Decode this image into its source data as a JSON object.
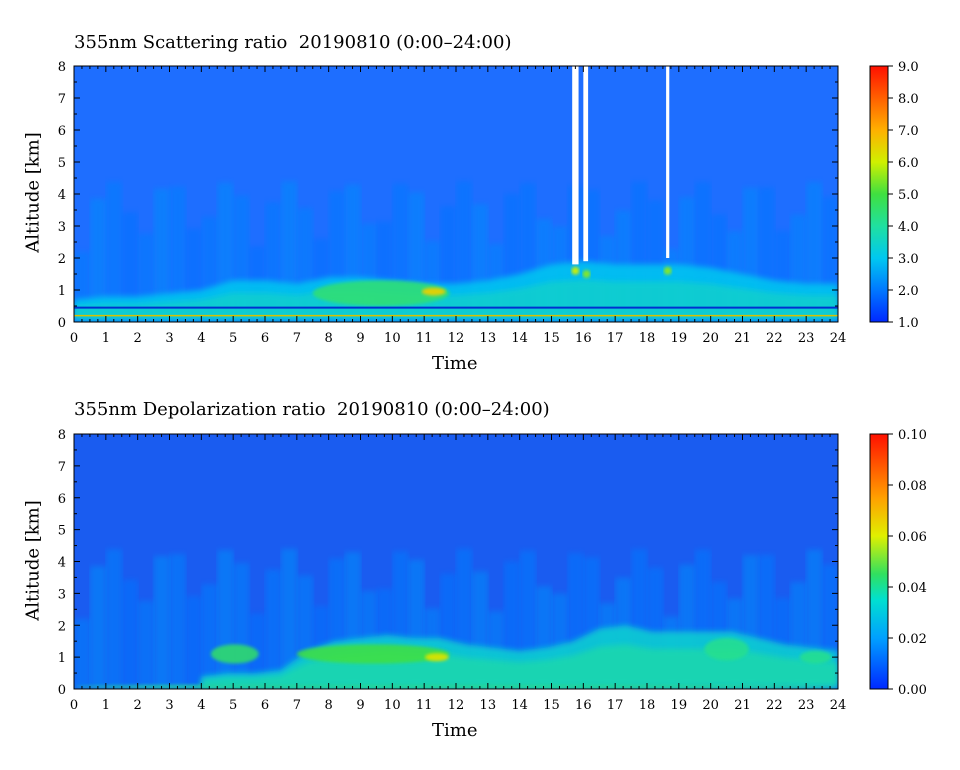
{
  "chart_data": [
    {
      "type": "heatmap",
      "title": "355nm Scattering ratio  20190810 (0:00–24:00)",
      "xlabel": "Time",
      "ylabel": "Altitude [km]",
      "xlim": [
        0,
        24
      ],
      "ylim": [
        0,
        8
      ],
      "x_ticks": [
        "0",
        "1",
        "2",
        "3",
        "4",
        "5",
        "6",
        "7",
        "8",
        "9",
        "10",
        "11",
        "12",
        "13",
        "14",
        "15",
        "16",
        "17",
        "18",
        "19",
        "20",
        "21",
        "22",
        "23",
        "24"
      ],
      "y_ticks": [
        "0",
        "1",
        "2",
        "3",
        "4",
        "5",
        "6",
        "7",
        "8"
      ],
      "colorbar": {
        "range": [
          1.0,
          9.0
        ],
        "ticks": [
          "1.0",
          "2.0",
          "3.0",
          "4.0",
          "5.0",
          "6.0",
          "7.0",
          "8.0",
          "9.0"
        ],
        "colormap": "jet"
      },
      "background_value": 1.6,
      "features": [
        {
          "kind": "aerosol_layer",
          "x_range": [
            0,
            24
          ],
          "top_km": [
            0.7,
            0.8,
            0.8,
            0.9,
            1.0,
            1.3,
            1.3,
            1.2,
            1.4,
            1.4,
            1.3,
            1.2,
            1.2,
            1.3,
            1.5,
            1.8,
            1.9,
            1.8,
            1.8,
            1.8,
            1.7,
            1.5,
            1.3,
            1.2,
            1.2
          ],
          "value": 3.0
        },
        {
          "kind": "enhanced_layer",
          "x_range": [
            7.5,
            11.8
          ],
          "alt_range": [
            0.5,
            1.3
          ],
          "value": 4.5
        },
        {
          "kind": "peak",
          "x": 11.3,
          "alt": 0.95,
          "value": 6.5
        },
        {
          "kind": "cloud_gap",
          "x_range": [
            15.65,
            15.85
          ],
          "alt_range": [
            1.8,
            8.0
          ],
          "value": null
        },
        {
          "kind": "cloud_gap",
          "x_range": [
            16.0,
            16.15
          ],
          "alt_range": [
            1.9,
            8.0
          ],
          "value": null
        },
        {
          "kind": "cloud_gap",
          "x_range": [
            18.6,
            18.7
          ],
          "alt_range": [
            2.0,
            8.0
          ],
          "value": null
        },
        {
          "kind": "cloud_base",
          "x": 15.75,
          "alt": 1.6,
          "value": 6.0
        },
        {
          "kind": "cloud_base",
          "x": 16.1,
          "alt": 1.5,
          "value": 5.5
        },
        {
          "kind": "cloud_base",
          "x": 18.65,
          "alt": 1.6,
          "value": 5.5
        }
      ],
      "colors": {
        "background": "#1e6eff",
        "near_surface_line": "#d8c000"
      }
    },
    {
      "type": "heatmap",
      "title": "355nm Depolarization ratio  20190810 (0:00–24:00)",
      "xlabel": "Time",
      "ylabel": "Altitude [km]",
      "xlim": [
        0,
        24
      ],
      "ylim": [
        0,
        8
      ],
      "x_ticks": [
        "0",
        "1",
        "2",
        "3",
        "4",
        "5",
        "6",
        "7",
        "8",
        "9",
        "10",
        "11",
        "12",
        "13",
        "14",
        "15",
        "16",
        "17",
        "18",
        "19",
        "20",
        "21",
        "22",
        "23",
        "24"
      ],
      "y_ticks": [
        "0",
        "1",
        "2",
        "3",
        "4",
        "5",
        "6",
        "7",
        "8"
      ],
      "colorbar": {
        "range": [
          0.0,
          0.1
        ],
        "ticks": [
          "0.00",
          "0.02",
          "0.04",
          "0.06",
          "0.08",
          "0.10"
        ],
        "colormap": "jet"
      },
      "background_value": 0.008,
      "features": [
        {
          "kind": "aerosol_layer",
          "x_range": [
            4,
            24
          ],
          "top_km": [
            0.4,
            0.5,
            0.5,
            0.6,
            1.2,
            1.5,
            1.6,
            1.7,
            1.6,
            1.6,
            1.4,
            1.3,
            1.2,
            1.3,
            1.5,
            1.9,
            2.0,
            1.8,
            1.8,
            1.8,
            1.8,
            1.6,
            1.4,
            1.3,
            1.2
          ],
          "value": 0.03
        },
        {
          "kind": "enhanced_layer",
          "x_range": [
            7,
            11.8
          ],
          "alt_range": [
            0.8,
            1.4
          ],
          "value": 0.05
        },
        {
          "kind": "peak",
          "x": 11.4,
          "alt": 1.0,
          "value": 0.065
        },
        {
          "kind": "enhanced_layer",
          "x_range": [
            4.3,
            5.8
          ],
          "alt_range": [
            0.8,
            1.4
          ],
          "value": 0.045
        },
        {
          "kind": "enhanced_layer",
          "x_range": [
            19.8,
            21.2
          ],
          "alt_range": [
            0.9,
            1.6
          ],
          "value": 0.04
        },
        {
          "kind": "enhanced_layer",
          "x_range": [
            22.8,
            23.8
          ],
          "alt_range": [
            0.8,
            1.2
          ],
          "value": 0.04
        },
        {
          "kind": "surface_layer",
          "x_range": [
            0,
            24
          ],
          "alt_range": [
            0,
            0.15
          ],
          "value": 0.04
        }
      ],
      "colors": {
        "background": "#1a5cf0"
      }
    }
  ]
}
